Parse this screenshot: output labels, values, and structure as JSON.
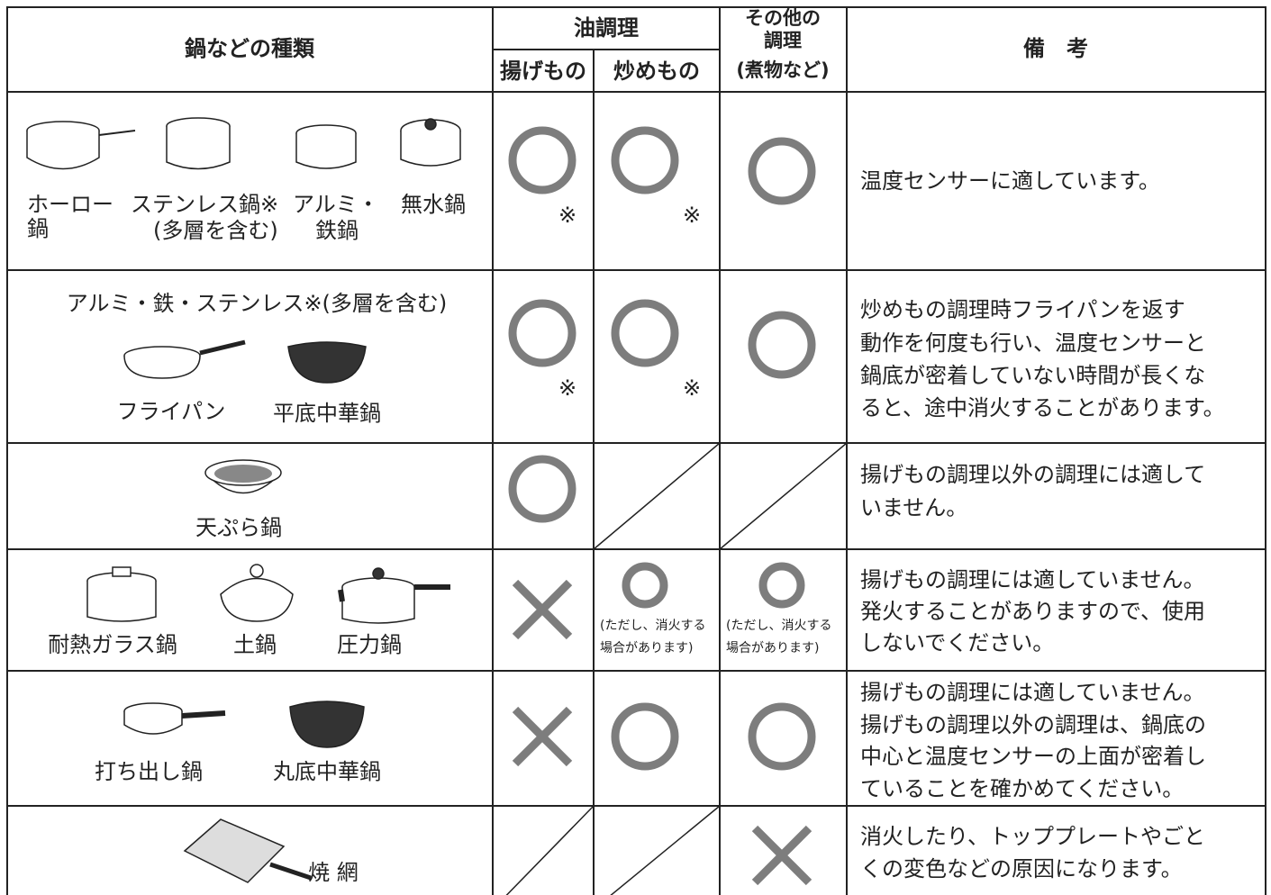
{
  "header": {
    "pot_type": "鍋などの種類",
    "oil": "油調理",
    "fried": "揚げもの",
    "stirfry": "炒めもの",
    "other": [
      "その他の",
      "調理",
      "(煮物など)"
    ],
    "remarks": "備　考"
  },
  "rows": [
    {
      "pots": [
        {
          "label": [
            "ホーロー",
            "鍋"
          ]
        },
        {
          "label": [
            "ステンレス鍋※",
            "(多層を含む)"
          ]
        },
        {
          "label": [
            "アルミ・",
            "鉄鍋"
          ]
        },
        {
          "label": [
            "無水鍋"
          ]
        }
      ],
      "marks": [
        "※",
        "※"
      ],
      "note": [
        "温度センサーに適しています。"
      ]
    },
    {
      "title": "アルミ・鉄・ステンレス※(多層を含む)",
      "pots": [
        {
          "label": [
            "フライパン"
          ]
        },
        {
          "label": [
            "平底中華鍋"
          ]
        }
      ],
      "marks": [
        "※",
        "※"
      ],
      "note": [
        "炒めもの調理時フライパンを返す",
        "動作を何度も行い、温度センサーと",
        "鍋底が密着していない時間が長くな",
        "ると、途中消火することがあります。"
      ]
    },
    {
      "pots": [
        {
          "label": [
            "天ぷら鍋"
          ]
        }
      ],
      "note": [
        "揚げもの調理以外の調理には適して",
        "いません。"
      ]
    },
    {
      "pots": [
        {
          "label": [
            "耐熱ガラス鍋"
          ]
        },
        {
          "label": [
            "土鍋"
          ]
        },
        {
          "label": [
            "圧力鍋"
          ]
        }
      ],
      "marks": [
        [
          "(ただし、消火する",
          "場合があります)"
        ],
        [
          "(ただし、消火する",
          "場合があります)"
        ]
      ],
      "note": [
        "揚げもの調理には適していません。",
        "発火することがありますので、使用",
        "しないでください。"
      ]
    },
    {
      "pots": [
        {
          "label": [
            "打ち出し鍋"
          ]
        },
        {
          "label": [
            "丸底中華鍋"
          ]
        }
      ],
      "note": [
        "揚げもの調理には適していません。",
        "揚げもの調理以外の調理は、鍋底の",
        "中心と温度センサーの上面が密着し",
        "ていることを確かめてください。"
      ]
    },
    {
      "pots": [
        {
          "label": [
            "焼 網"
          ]
        }
      ],
      "note": [
        "消火したり、トッププレートやごと",
        "くの変色などの原因になります。"
      ]
    }
  ]
}
